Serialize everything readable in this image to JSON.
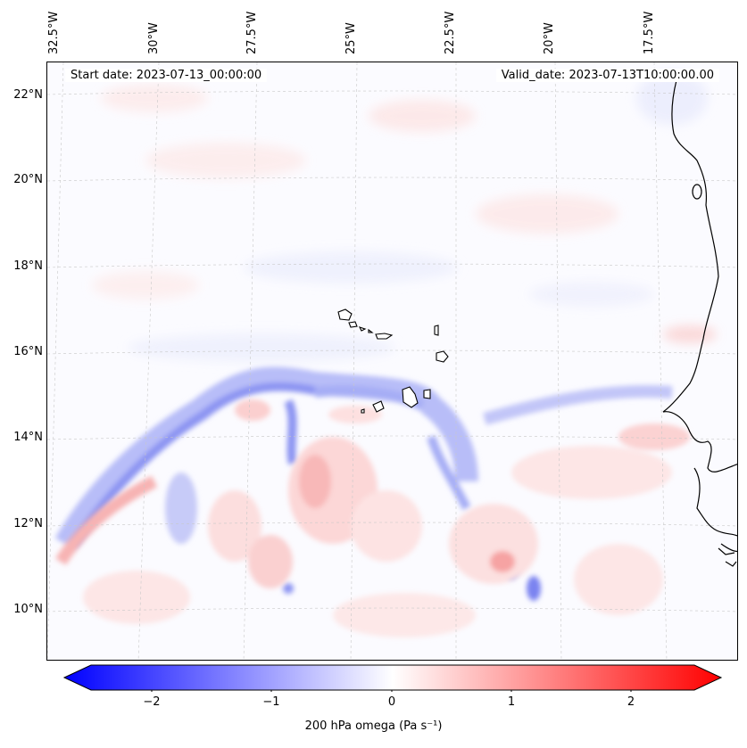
{
  "header": {
    "start_date": "Start date: 2023-07-13_00:00:00",
    "valid_date": "Valid_date: 2023-07-13T10:00:00.00"
  },
  "axes": {
    "lon_labels": [
      "32.5°W",
      "30°W",
      "27.5°W",
      "25°W",
      "22.5°W",
      "20°W",
      "17.5°W"
    ],
    "lat_labels": [
      "22°N",
      "20°N",
      "18°N",
      "16°N",
      "14°N",
      "12°N",
      "10°N"
    ]
  },
  "colorbar": {
    "ticks": [
      "−2",
      "−1",
      "0",
      "1",
      "2"
    ],
    "label": "200 hPa omega (Pa s⁻¹)",
    "min_color": "#0000ff",
    "mid_color": "#ffffff",
    "max_color": "#ff0000"
  },
  "map": {
    "field": "200 hPa omega",
    "colormap": "bwr",
    "gridlines": true,
    "coastline_color": "#000000",
    "land_features": [
      "West African coast",
      "Cape Verde islands"
    ]
  }
}
